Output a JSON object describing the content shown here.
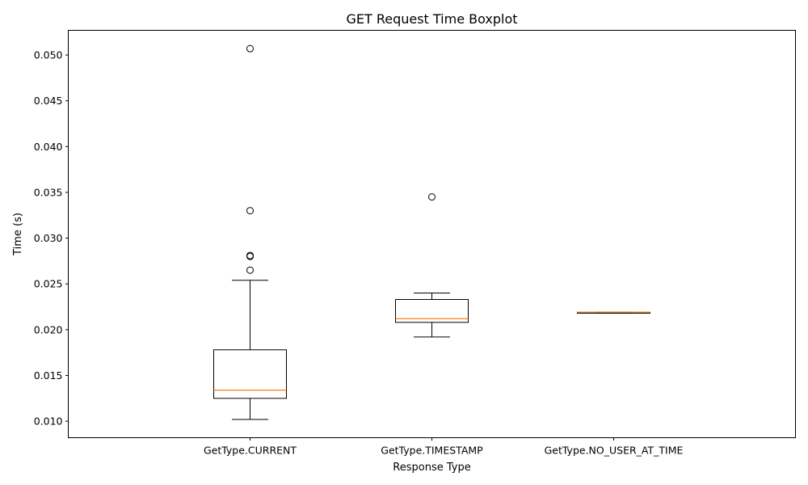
{
  "chart_data": {
    "type": "boxplot",
    "title": "GET Request Time Boxplot",
    "xlabel": "Response Type",
    "ylabel": "Time (s)",
    "ylim": [
      0.0082,
      0.0527
    ],
    "yticks": [
      "0.010",
      "0.015",
      "0.020",
      "0.025",
      "0.030",
      "0.035",
      "0.040",
      "0.045",
      "0.050"
    ],
    "categories": [
      "GetType.CURRENT",
      "GetType.TIMESTAMP",
      "GetType.NO_USER_AT_TIME"
    ],
    "boxes": [
      {
        "whisker_low": 0.0102,
        "q1": 0.0125,
        "median": 0.0134,
        "q3": 0.0178,
        "whisker_high": 0.0254,
        "outliers": [
          0.0265,
          0.028,
          0.0281,
          0.033,
          0.0507
        ]
      },
      {
        "whisker_low": 0.0192,
        "q1": 0.0208,
        "median": 0.0212,
        "q3": 0.0233,
        "whisker_high": 0.024,
        "outliers": [
          0.0345
        ]
      },
      {
        "whisker_low": 0.0218,
        "q1": 0.0218,
        "median": 0.0219,
        "q3": 0.0219,
        "whisker_high": 0.0219,
        "outliers": []
      }
    ],
    "grid": false,
    "colors": {
      "box": "#000000",
      "median": "#ff7f0e",
      "outlier": "#000000"
    }
  }
}
